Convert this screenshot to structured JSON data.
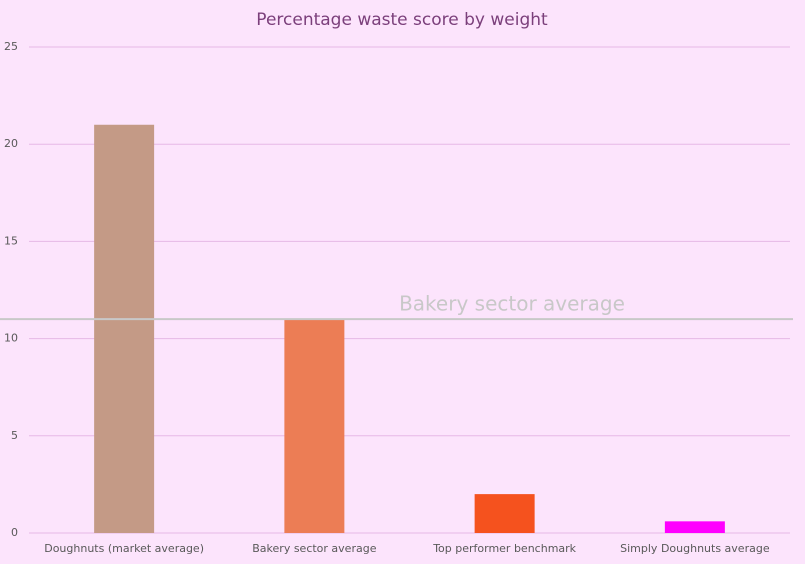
{
  "chart_data": {
    "type": "bar",
    "title": "Percentage waste score by weight",
    "categories": [
      "Doughnuts (market average)",
      "Bakery sector average",
      "Top performer benchmark",
      "Simply Doughnuts average"
    ],
    "values": [
      21,
      11,
      2,
      0.6
    ],
    "colors": [
      "#c49a86",
      "#ec7d55",
      "#f5521e",
      "#ff00ff"
    ],
    "ylim": [
      0,
      25
    ],
    "yticks": [
      0,
      5,
      10,
      15,
      20,
      25
    ],
    "grid": true,
    "reference_line": {
      "value": 11,
      "label": "Bakery sector average",
      "color": "#c8c8c8"
    }
  }
}
